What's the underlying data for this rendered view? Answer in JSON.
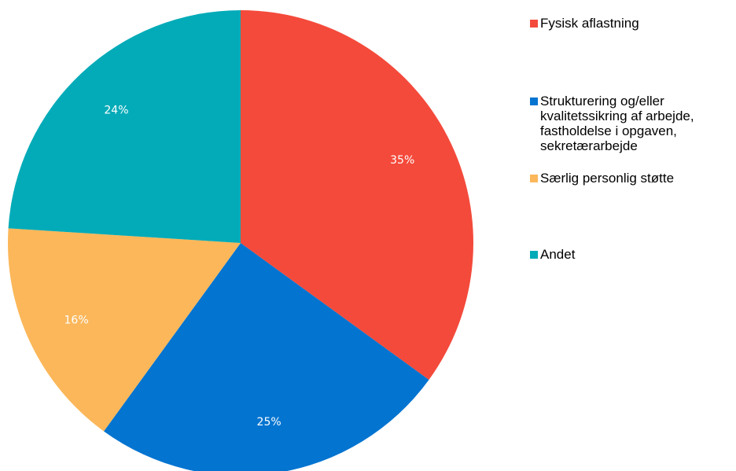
{
  "chart_data": {
    "type": "pie",
    "title": "",
    "categories": [
      "Fysisk aflastning",
      "Strukturering og/eller kvalitetssikring af arbejde, fastholdelse i opgaven, sekretærarbejde",
      "Særlig personlig støtte",
      "Andet"
    ],
    "values": [
      35,
      25,
      16,
      24
    ],
    "data_labels": [
      "35%",
      "25%",
      "16%",
      "24%"
    ],
    "colors": [
      "#f44a3b",
      "#0374d0",
      "#fbb75a",
      "#03abb8"
    ],
    "legend_position": "right",
    "legend": [
      {
        "label": "Fysisk aflastning",
        "color": "#f44a3b"
      },
      {
        "label": "Strukturering og/eller\nkvalitetssikring af arbejde,\nfastholdelse i opgaven,\nsekretærarbejde",
        "color": "#0374d0"
      },
      {
        "label": "Særlig personlig støtte",
        "color": "#fbb75a"
      },
      {
        "label": "Andet",
        "color": "#03abb8"
      }
    ]
  }
}
